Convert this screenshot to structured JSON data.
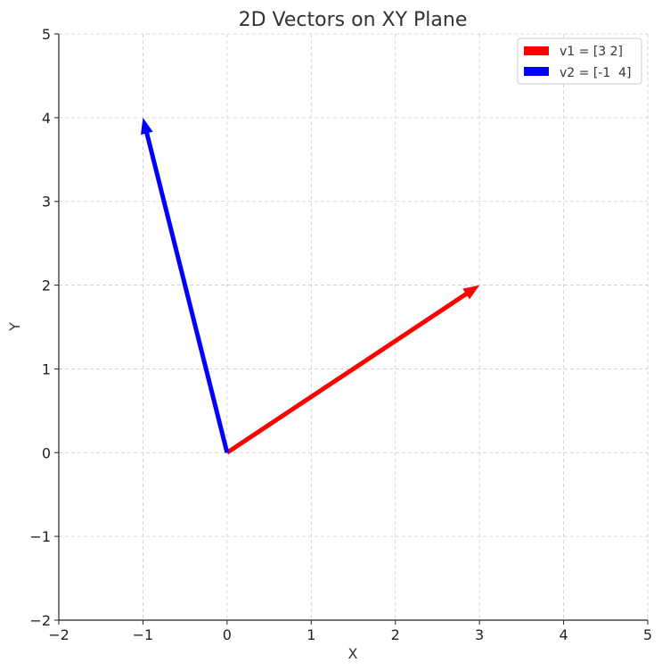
{
  "chart_data": {
    "type": "vector",
    "title": "2D Vectors on XY Plane",
    "xlabel": "X",
    "ylabel": "Y",
    "xlim": [
      -2,
      5
    ],
    "ylim": [
      -2,
      5
    ],
    "xticks": [
      -2,
      -1,
      0,
      1,
      2,
      3,
      4,
      5
    ],
    "yticks": [
      -2,
      -1,
      0,
      1,
      2,
      3,
      4,
      5
    ],
    "xtick_labels": [
      "−2",
      "−1",
      "0",
      "1",
      "2",
      "3",
      "4",
      "5"
    ],
    "ytick_labels": [
      "−2",
      "−1",
      "0",
      "1",
      "2",
      "3",
      "4",
      "5"
    ],
    "grid": true,
    "legend_position": "top-right",
    "series": [
      {
        "name": "v1 = [3 2]",
        "origin": [
          0,
          0
        ],
        "vector": [
          3,
          2
        ],
        "color": "#ff0000"
      },
      {
        "name": "v2 = [-1  4]",
        "origin": [
          0,
          0
        ],
        "vector": [
          -1,
          4
        ],
        "color": "#0000ff"
      }
    ]
  }
}
